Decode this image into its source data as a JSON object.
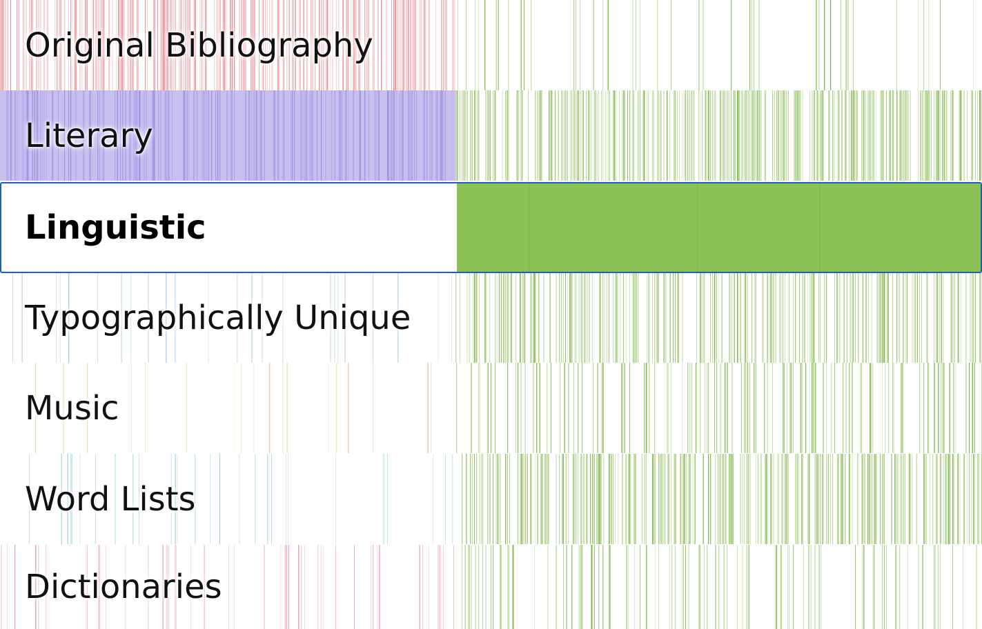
{
  "palette": {
    "green": "#7bb342",
    "selected_fill": "#8bc155",
    "selection_border": "#1f5fb0",
    "left_tints": [
      "#e3848f",
      "#9a8ae0",
      "#9ec4dc",
      "#9ec4dc",
      "#e8c690",
      "#8fcdd5",
      "#e59aa8"
    ]
  },
  "categories": [
    {
      "label": "Original Bibliography",
      "left_tint": "#e3848f",
      "left_density": 0.55,
      "left_fill": false,
      "right_density": 0.08,
      "selected": false
    },
    {
      "label": "Literary",
      "left_tint": "#9a8ae0",
      "left_density": 0.35,
      "left_fill": true,
      "right_density": 0.55,
      "selected": false
    },
    {
      "label": "Linguistic",
      "left_tint": "#ffffff",
      "left_density": 0,
      "left_fill": false,
      "right_density": 1.0,
      "selected": true
    },
    {
      "label": "Typographically Unique",
      "left_tint": "#9ec4dc",
      "left_density": 0.06,
      "left_fill": false,
      "right_density": 0.45,
      "selected": false
    },
    {
      "label": "Music",
      "left_tint": "#e8c690",
      "left_density": 0.05,
      "left_fill": false,
      "right_density": 0.25,
      "selected": false
    },
    {
      "label": "Word Lists",
      "left_tint": "#8fcdd5",
      "left_density": 0.07,
      "left_fill": false,
      "right_density": 0.45,
      "selected": false
    },
    {
      "label": "Dictionaries",
      "left_tint": "#e59aa8",
      "left_density": 0.12,
      "left_fill": false,
      "right_density": 0.2,
      "selected": false
    }
  ]
}
